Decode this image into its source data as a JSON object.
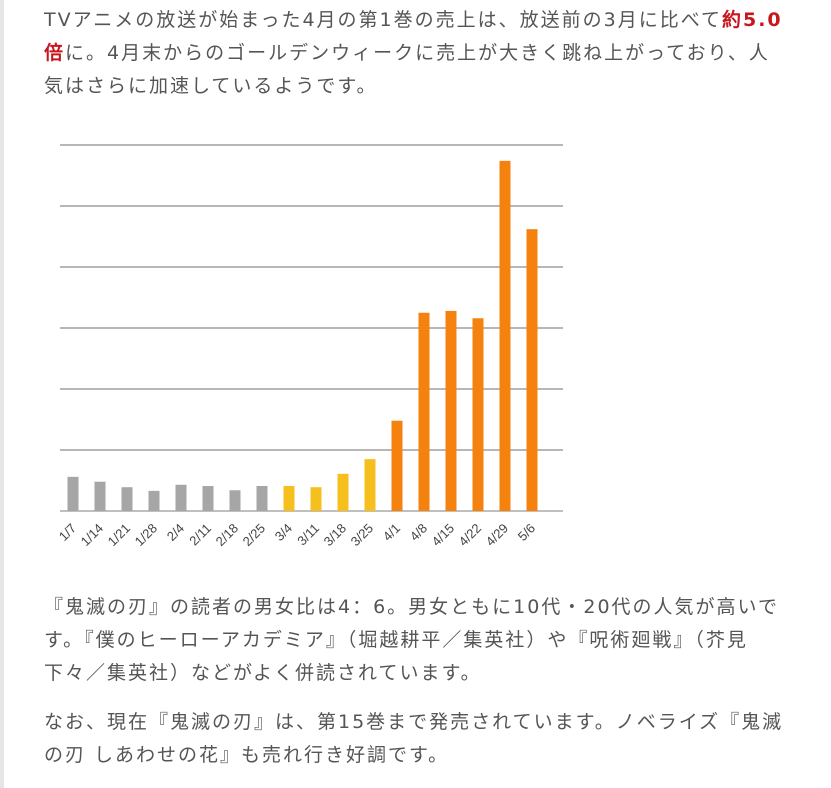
{
  "paragraph1": {
    "line1": {
      "text": "TVアニメの放送が始まった4月の第1巻の売上は、放送前の3月に比べて",
      "emphasis": "約5.0"
    },
    "line2": {
      "emphasis": "倍",
      "text": "に。4月末からのゴールデンウィークに売上が大きく跳ね上がっており、人"
    },
    "line3": "気はさらに加速しているようです。"
  },
  "paragraph2": [
    "『鬼滅の刃』の読者の男女比は4：6。男女ともに10代・20代の人気が高いで",
    "す。『僕のヒーローアカデミア』（堀越耕平／集英社）や『呪術廻戦』（芥見",
    "下々／集英社）などがよく併読されています。"
  ],
  "paragraph3": [
    "なお、現在『鬼滅の刃』は、第15巻まで発売されています。ノベライズ『鬼滅",
    "の刃 しあわせの花』も売れ行き好調です。"
  ],
  "colors": {
    "text": "#555555",
    "emphasis": "#c8161d",
    "gray": "#a6a6a6",
    "yellow": "#f5bf1e",
    "orange": "#f5820f",
    "grid": "#8c8c8c"
  },
  "chart_data": {
    "type": "bar",
    "title": "",
    "xlabel": "",
    "ylabel": "",
    "categories": [
      "1/7",
      "1/14",
      "1/21",
      "1/28",
      "2/4",
      "2/11",
      "2/18",
      "2/25",
      "3/4",
      "3/11",
      "3/18",
      "3/25",
      "4/1",
      "4/8",
      "4/15",
      "4/22",
      "4/29",
      "5/6"
    ],
    "values": [
      0.56,
      0.48,
      0.39,
      0.33,
      0.43,
      0.41,
      0.34,
      0.41,
      0.41,
      0.39,
      0.61,
      0.85,
      1.48,
      3.25,
      3.28,
      3.16,
      5.74,
      4.62
    ],
    "bar_colors": [
      "gray",
      "gray",
      "gray",
      "gray",
      "gray",
      "gray",
      "gray",
      "gray",
      "yellow",
      "yellow",
      "yellow",
      "yellow",
      "orange",
      "orange",
      "orange",
      "orange",
      "orange",
      "orange"
    ],
    "ylim": [
      0,
      6
    ],
    "y_tick_labels_shown": false,
    "grid": true,
    "note": ""
  }
}
